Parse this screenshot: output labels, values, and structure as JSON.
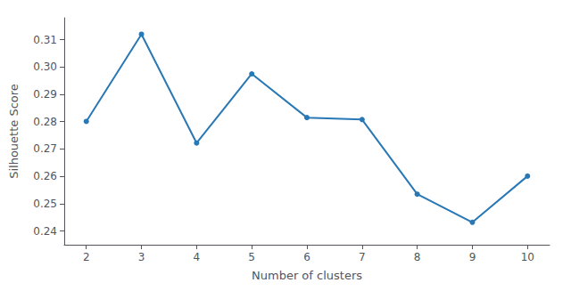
{
  "chart_data": {
    "type": "line",
    "xlabel": "Number of clusters",
    "ylabel": "Silhouette Score",
    "x": [
      2,
      3,
      4,
      5,
      6,
      7,
      8,
      9,
      10
    ],
    "values": [
      0.2801,
      0.312,
      0.2722,
      0.2975,
      0.2815,
      0.2808,
      0.2535,
      0.2432,
      0.2601
    ],
    "color": "#2878b5",
    "marker": "o",
    "xlim": [
      1.6,
      10.4
    ],
    "ylim": [
      0.235,
      0.318
    ],
    "xticks": [
      2,
      3,
      4,
      5,
      6,
      7,
      8,
      9,
      10
    ],
    "yticks": [
      0.24,
      0.25,
      0.26,
      0.27,
      0.28,
      0.29,
      {
        "value": 0.3,
        "label": "0.30"
      },
      0.31
    ],
    "grid": false
  }
}
